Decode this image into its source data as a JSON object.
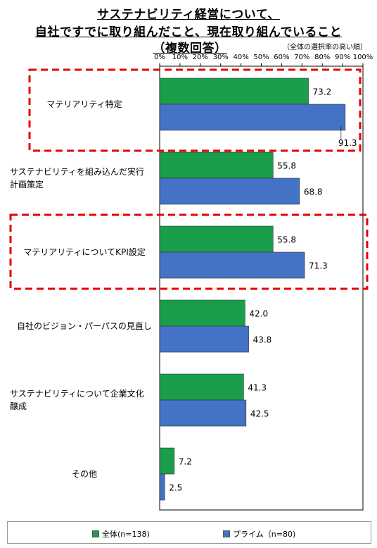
{
  "title": {
    "line1": "サステナビリティ経営について、",
    "line2": "自社ですでに取り組んだこと、現在取り組んでいること",
    "line3": "（複数回答）"
  },
  "note": "（全体の選択率の高い順）",
  "colors": {
    "all": "#1a9e4b",
    "prime": "#4472c4",
    "highlight": "#e60000"
  },
  "chart_data": {
    "type": "bar",
    "orientation": "horizontal",
    "categories": [
      [
        "マテリアリティ特定"
      ],
      [
        "サステナビリティを組み込んだ実行",
        "計画策定"
      ],
      [
        "マテリアリティについてKPI設定"
      ],
      [
        "自社のビジョン・パーパスの見直し"
      ],
      [
        "サステナビリティについて企業文化",
        "醸成"
      ],
      [
        "その他"
      ]
    ],
    "series": [
      {
        "name": "全体(n=138)",
        "values": [
          73.2,
          55.8,
          55.8,
          42.0,
          41.3,
          7.2
        ]
      },
      {
        "name": "プライム（n=80)",
        "values": [
          91.3,
          68.8,
          71.3,
          43.8,
          42.5,
          2.5
        ]
      }
    ],
    "xlim": [
      0,
      100
    ],
    "xticks": [
      "0%",
      "10%",
      "20%",
      "30%",
      "40%",
      "50%",
      "60%",
      "70%",
      "80%",
      "90%",
      "100%"
    ],
    "highlighted_categories": [
      0,
      2
    ],
    "legend": "bottom"
  }
}
